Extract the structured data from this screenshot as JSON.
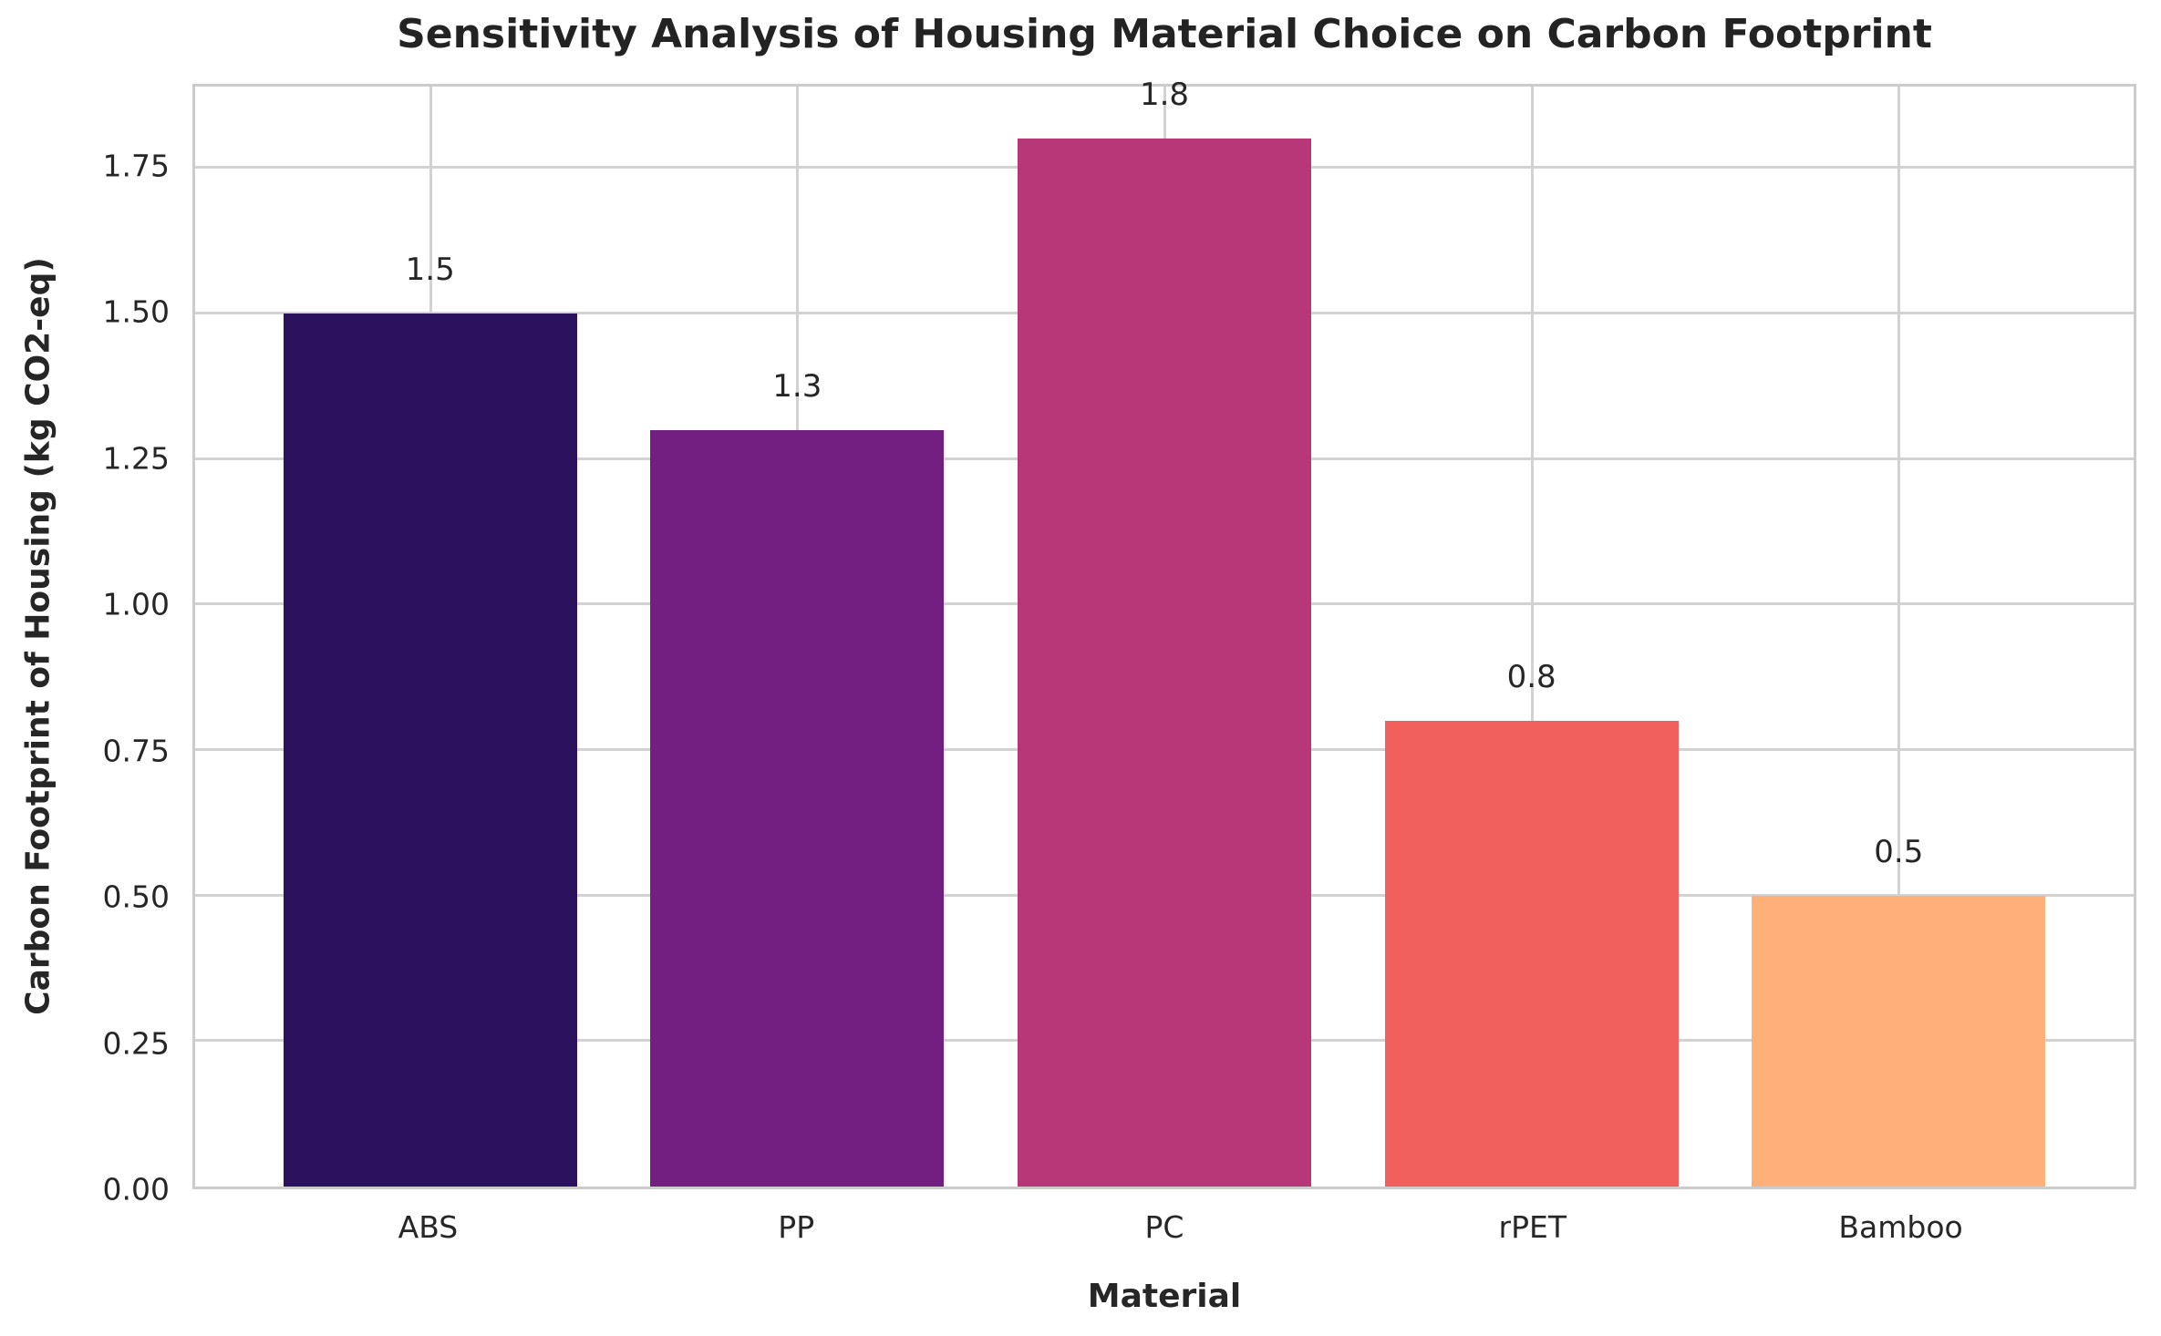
{
  "chart_data": {
    "type": "bar",
    "title": "Sensitivity Analysis of Housing Material Choice on Carbon Footprint",
    "xlabel": "Material",
    "ylabel": "Carbon Footprint of Housing (kg CO2-eq)",
    "categories": [
      "ABS",
      "PP",
      "PC",
      "rPET",
      "Bamboo"
    ],
    "values": [
      1.5,
      1.3,
      1.8,
      0.8,
      0.5
    ],
    "bar_labels": [
      "1.5",
      "1.3",
      "1.8",
      "0.8",
      "0.5"
    ],
    "bar_colors": [
      "#2c115f",
      "#721f81",
      "#b73779",
      "#f1605d",
      "#feb078"
    ],
    "ytick_values": [
      0,
      0.25,
      0.5,
      0.75,
      1.0,
      1.25,
      1.5,
      1.75
    ],
    "ytick_labels": [
      "0.00",
      "0.25",
      "0.50",
      "0.75",
      "1.00",
      "1.25",
      "1.50",
      "1.75"
    ],
    "ylim": [
      0,
      1.89
    ],
    "grid": true,
    "legend": false,
    "style": {
      "grid_color": "#d2d2d2",
      "spine_color": "#cccccc",
      "text_color": "#262626",
      "background": "#ffffff"
    }
  }
}
